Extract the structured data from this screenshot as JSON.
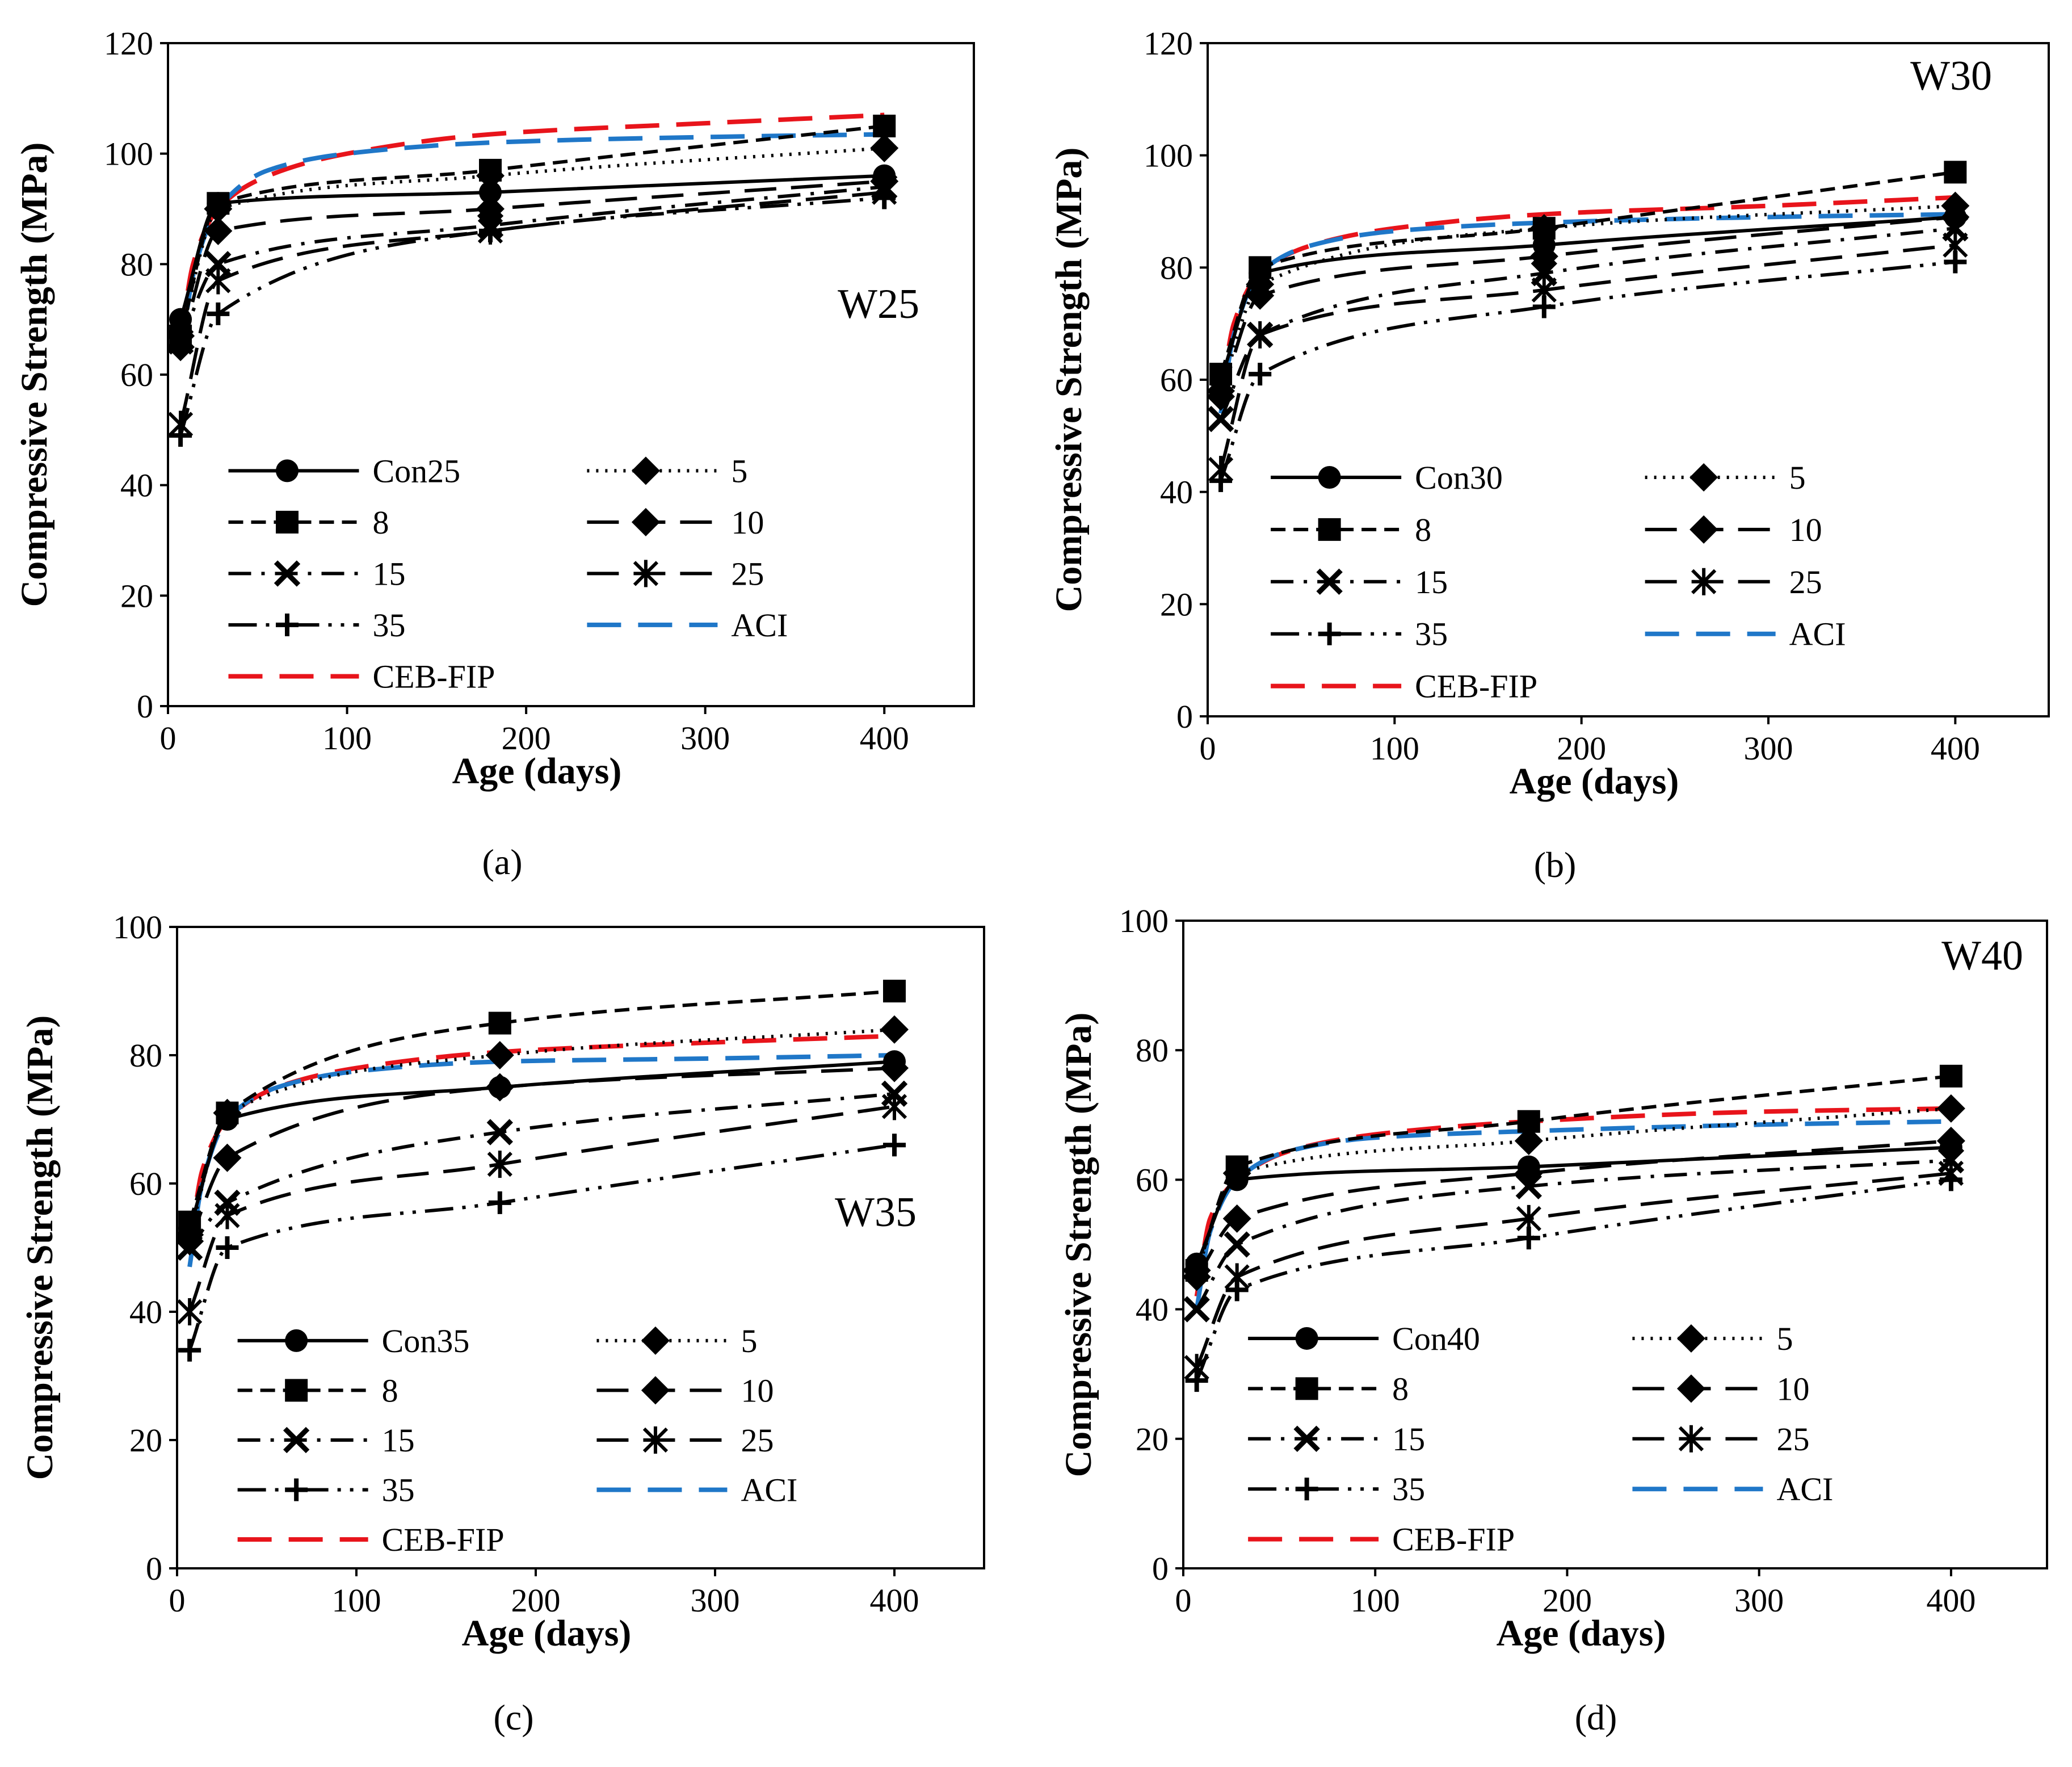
{
  "colors": {
    "ACI": "#1f77c8",
    "CEB-FIP": "#e8141b",
    "default": "#000000"
  },
  "chart_data": [
    {
      "type": "line",
      "panel_label": "W25",
      "caption": "(a)",
      "xlabel": "Age (days)",
      "ylabel": "Compressive Strength (MPa)",
      "xlim": [
        0,
        450
      ],
      "ylim": [
        0,
        120
      ],
      "xticks": [
        "0",
        "100",
        "200",
        "300",
        "400"
      ],
      "yticks": [
        "0",
        "20",
        "40",
        "60",
        "80",
        "100",
        "120"
      ],
      "grid": false,
      "legend_position": "bottom-left",
      "x": [
        7,
        28,
        180,
        400
      ],
      "series": [
        {
          "name": "Con25",
          "style": "solid",
          "marker": "circle",
          "values": [
            70,
            91,
            93,
            96
          ]
        },
        {
          "name": "5",
          "style": "dotted",
          "marker": "diamond",
          "values": [
            67,
            90,
            96,
            101
          ]
        },
        {
          "name": "8",
          "style": "dashed",
          "marker": "square",
          "values": [
            67,
            91,
            97,
            105
          ]
        },
        {
          "name": "10",
          "style": "longdash",
          "marker": "diamond",
          "values": [
            65,
            86,
            90,
            95
          ]
        },
        {
          "name": "15",
          "style": "dashdot",
          "marker": "x",
          "values": [
            66,
            80,
            87,
            94
          ]
        },
        {
          "name": "25",
          "style": "longdash",
          "marker": "asterisk",
          "values": [
            51,
            77,
            86,
            93
          ]
        },
        {
          "name": "35",
          "style": "dashdotdot",
          "marker": "plus",
          "values": [
            49,
            71,
            86,
            92
          ]
        },
        {
          "name": "ACI",
          "style": "bluedash",
          "marker": "none",
          "values": [
            null,
            null,
            null,
            null
          ]
        },
        {
          "name": "CEB-FIP",
          "style": "reddash",
          "marker": "none",
          "values": [
            null,
            null,
            null,
            null
          ]
        }
      ],
      "model_curves": {
        "ACI": {
          "days": [
            7,
            14,
            28,
            56,
            100,
            180,
            300,
            400
          ],
          "values": [
            63,
            78,
            90,
            97,
            100,
            102,
            103,
            103.5
          ]
        },
        "CEB-FIP": {
          "days": [
            7,
            14,
            28,
            56,
            100,
            180,
            300,
            400
          ],
          "values": [
            66,
            80,
            90,
            96,
            100,
            103.5,
            105.5,
            107
          ]
        }
      }
    },
    {
      "type": "line",
      "panel_label": "W30",
      "caption": "(b)",
      "xlabel": "Age (days)",
      "ylabel": "Compressive Strength (MPa)",
      "xlim": [
        0,
        450
      ],
      "ylim": [
        0,
        120
      ],
      "xticks": [
        "0",
        "100",
        "200",
        "300",
        "400"
      ],
      "yticks": [
        "0",
        "20",
        "40",
        "60",
        "80",
        "100",
        "120"
      ],
      "grid": false,
      "legend_position": "bottom-left",
      "x": [
        7,
        28,
        180,
        400
      ],
      "series": [
        {
          "name": "Con30",
          "style": "solid",
          "marker": "circle",
          "values": [
            60,
            79,
            84,
            89
          ]
        },
        {
          "name": "5",
          "style": "dotted",
          "marker": "diamond",
          "values": [
            58,
            77,
            87,
            91
          ]
        },
        {
          "name": "8",
          "style": "dashed",
          "marker": "square",
          "values": [
            61,
            80,
            87,
            97
          ]
        },
        {
          "name": "10",
          "style": "longdash",
          "marker": "diamond",
          "values": [
            57,
            75,
            82,
            89
          ]
        },
        {
          "name": "15",
          "style": "dashdot",
          "marker": "x",
          "values": [
            53,
            68,
            79,
            87
          ]
        },
        {
          "name": "25",
          "style": "longdash",
          "marker": "asterisk",
          "values": [
            44,
            68,
            76,
            84
          ]
        },
        {
          "name": "35",
          "style": "dashdotdot",
          "marker": "plus",
          "values": [
            42,
            61,
            73,
            81
          ]
        },
        {
          "name": "ACI",
          "style": "bluedash",
          "marker": "none",
          "values": [
            null,
            null,
            null,
            null
          ]
        },
        {
          "name": "CEB-FIP",
          "style": "reddash",
          "marker": "none",
          "values": [
            null,
            null,
            null,
            null
          ]
        }
      ],
      "model_curves": {
        "ACI": {
          "days": [
            7,
            14,
            28,
            56,
            100,
            180,
            300,
            400
          ],
          "values": [
            54,
            68,
            79,
            84,
            86.5,
            88,
            89,
            89.5
          ]
        },
        "CEB-FIP": {
          "days": [
            7,
            14,
            28,
            56,
            100,
            180,
            300,
            400
          ],
          "values": [
            57,
            70,
            79,
            84,
            87,
            89.5,
            91,
            92.5
          ]
        }
      }
    },
    {
      "type": "line",
      "panel_label": "W35",
      "caption": "(c)",
      "xlabel": "Age (days)",
      "ylabel": "Compressive Strength (MPa)",
      "xlim": [
        0,
        450
      ],
      "ylim": [
        0,
        100
      ],
      "xticks": [
        "0",
        "100",
        "200",
        "300",
        "400"
      ],
      "yticks": [
        "0",
        "20",
        "40",
        "60",
        "80",
        "100"
      ],
      "grid": false,
      "legend_position": "bottom-left",
      "x": [
        7,
        28,
        180,
        400
      ],
      "series": [
        {
          "name": "Con35",
          "style": "solid",
          "marker": "circle",
          "values": [
            53,
            70,
            75,
            79
          ]
        },
        {
          "name": "5",
          "style": "dotted",
          "marker": "diamond",
          "values": [
            52,
            71,
            80,
            84
          ]
        },
        {
          "name": "8",
          "style": "dashed",
          "marker": "square",
          "values": [
            54,
            71,
            85,
            90
          ]
        },
        {
          "name": "10",
          "style": "longdash",
          "marker": "diamond",
          "values": [
            51,
            64,
            75,
            78
          ]
        },
        {
          "name": "15",
          "style": "dashdot",
          "marker": "x",
          "values": [
            50,
            57,
            68,
            74
          ]
        },
        {
          "name": "25",
          "style": "longdash",
          "marker": "asterisk",
          "values": [
            40,
            55,
            63,
            72
          ]
        },
        {
          "name": "35",
          "style": "dashdotdot",
          "marker": "plus",
          "values": [
            34,
            50,
            57,
            66
          ]
        },
        {
          "name": "ACI",
          "style": "bluedash",
          "marker": "none",
          "values": [
            null,
            null,
            null,
            null
          ]
        },
        {
          "name": "CEB-FIP",
          "style": "reddash",
          "marker": "none",
          "values": [
            null,
            null,
            null,
            null
          ]
        }
      ],
      "model_curves": {
        "ACI": {
          "days": [
            7,
            14,
            28,
            56,
            100,
            180,
            300,
            400
          ],
          "values": [
            47,
            60,
            70,
            75,
            77.5,
            79,
            79.5,
            80
          ]
        },
        "CEB-FIP": {
          "days": [
            7,
            14,
            28,
            56,
            100,
            180,
            300,
            400
          ],
          "values": [
            50,
            62,
            70,
            75,
            78,
            80.5,
            82,
            83
          ]
        }
      }
    },
    {
      "type": "line",
      "panel_label": "W40",
      "caption": "(d)",
      "xlabel": "Age (days)",
      "ylabel": "Compressive Strength (MPa)",
      "xlim": [
        0,
        450
      ],
      "ylim": [
        0,
        100
      ],
      "xticks": [
        "0",
        "100",
        "200",
        "300",
        "400"
      ],
      "yticks": [
        "0",
        "20",
        "40",
        "60",
        "80",
        "100"
      ],
      "grid": false,
      "legend_position": "bottom-left",
      "x": [
        7,
        28,
        180,
        400
      ],
      "series": [
        {
          "name": "Con40",
          "style": "solid",
          "marker": "circle",
          "values": [
            47,
            60,
            62,
            65
          ]
        },
        {
          "name": "5",
          "style": "dotted",
          "marker": "diamond",
          "values": [
            46,
            61,
            66,
            71
          ]
        },
        {
          "name": "8",
          "style": "dashed",
          "marker": "square",
          "values": [
            46,
            62,
            69,
            76
          ]
        },
        {
          "name": "10",
          "style": "longdash",
          "marker": "diamond",
          "values": [
            45,
            54,
            61,
            66
          ]
        },
        {
          "name": "15",
          "style": "dashdot",
          "marker": "x",
          "values": [
            40,
            50,
            59,
            63
          ]
        },
        {
          "name": "25",
          "style": "longdash",
          "marker": "asterisk",
          "values": [
            31,
            45,
            54,
            61
          ]
        },
        {
          "name": "35",
          "style": "dashdotdot",
          "marker": "plus",
          "values": [
            29,
            43,
            51,
            60
          ]
        },
        {
          "name": "ACI",
          "style": "bluedash",
          "marker": "none",
          "values": [
            null,
            null,
            null,
            null
          ]
        },
        {
          "name": "CEB-FIP",
          "style": "reddash",
          "marker": "none",
          "values": [
            null,
            null,
            null,
            null
          ]
        }
      ],
      "model_curves": {
        "ACI": {
          "days": [
            7,
            14,
            28,
            56,
            100,
            180,
            300,
            400
          ],
          "values": [
            40,
            52,
            60,
            64.5,
            66.5,
            67.5,
            68.5,
            69
          ]
        },
        "CEB-FIP": {
          "days": [
            7,
            14,
            28,
            56,
            100,
            180,
            300,
            400
          ],
          "values": [
            42,
            54,
            60,
            64.5,
            67,
            69,
            70.5,
            71
          ]
        }
      }
    }
  ]
}
